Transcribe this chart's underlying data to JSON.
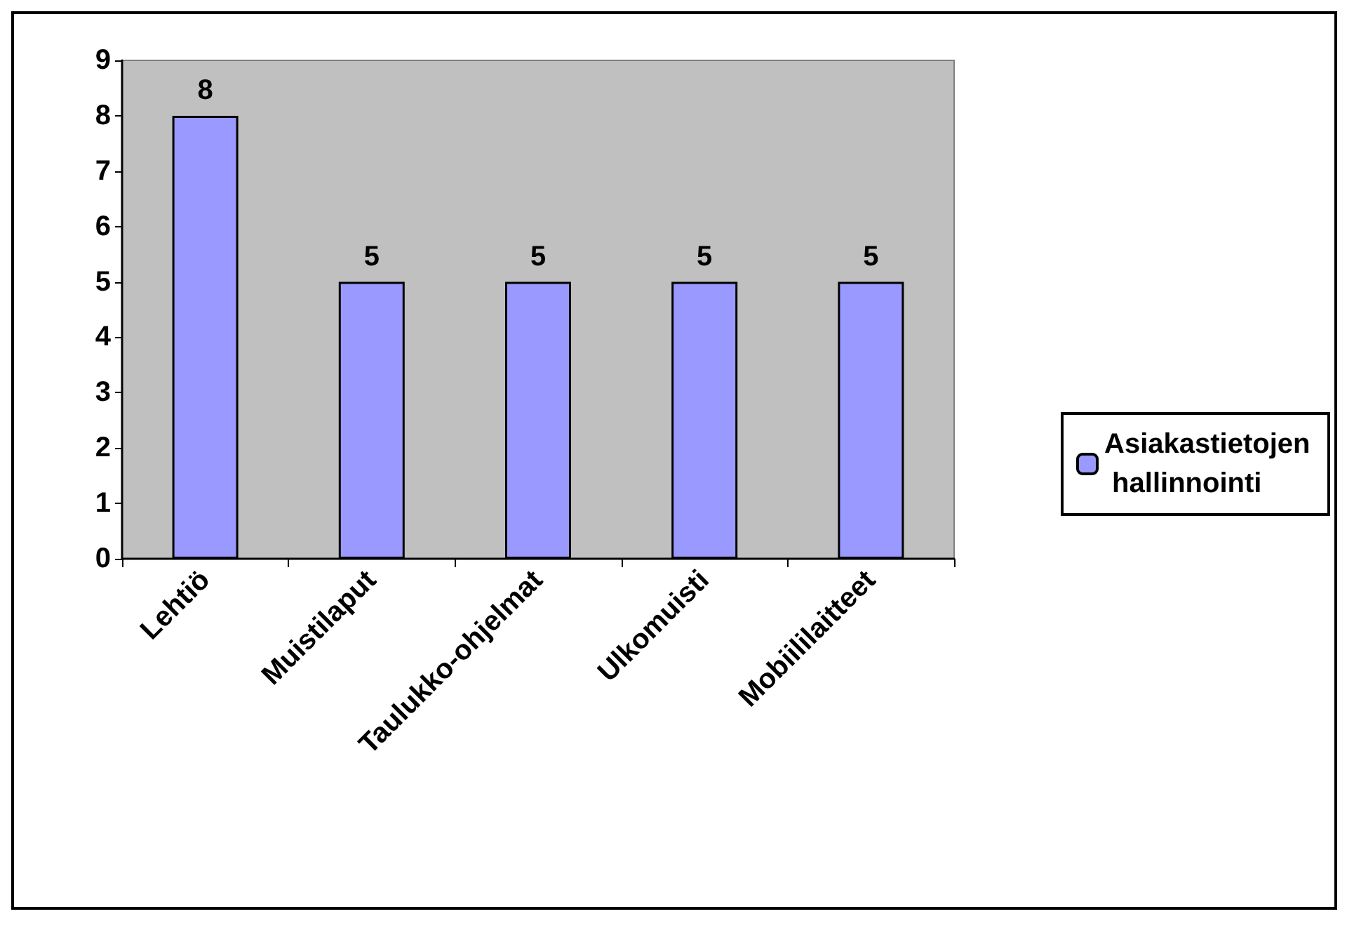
{
  "chart_data": {
    "type": "bar",
    "categories": [
      "Lehtiö",
      "Muistilaput",
      "Taulukko-ohjelmat",
      "Ulkomuisti",
      "Mobiililaitteet"
    ],
    "series": [
      {
        "name": "Asiakastietojen hallinnointi",
        "color": "#9999ff",
        "values": [
          8,
          5,
          5,
          5,
          5
        ]
      }
    ],
    "ylim": [
      0,
      9
    ],
    "yticks": [
      0,
      1,
      2,
      3,
      4,
      5,
      6,
      7,
      8,
      9
    ],
    "grid": false,
    "legend": "right",
    "data_labels": true
  }
}
